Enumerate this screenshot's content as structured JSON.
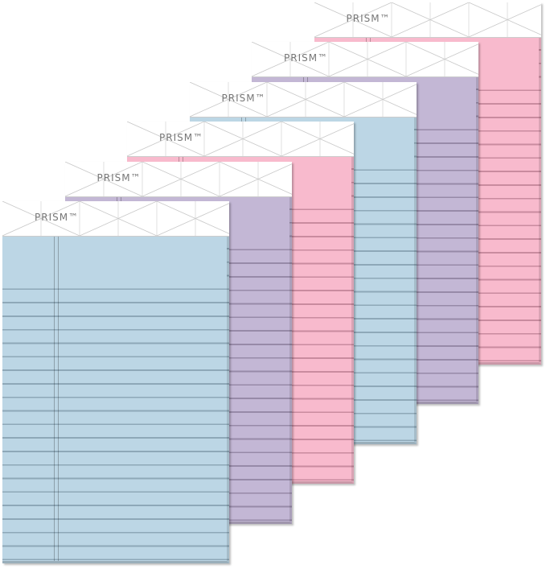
{
  "product": {
    "logo_text": "PRISM™",
    "pads": [
      {
        "color": "blue",
        "paper": "#bcd6e5",
        "rule": "#8ea8b8"
      },
      {
        "color": "purple",
        "paper": "#c3b7d5",
        "rule": "#978aa8"
      },
      {
        "color": "pink",
        "paper": "#f8bacd",
        "rule": "#c98b9f"
      },
      {
        "color": "blue",
        "paper": "#bcd6e5",
        "rule": "#8ea8b8"
      },
      {
        "color": "purple",
        "paper": "#c3b7d5",
        "rule": "#978aa8"
      },
      {
        "color": "pink",
        "paper": "#f8bacd",
        "rule": "#c98b9f"
      }
    ]
  }
}
